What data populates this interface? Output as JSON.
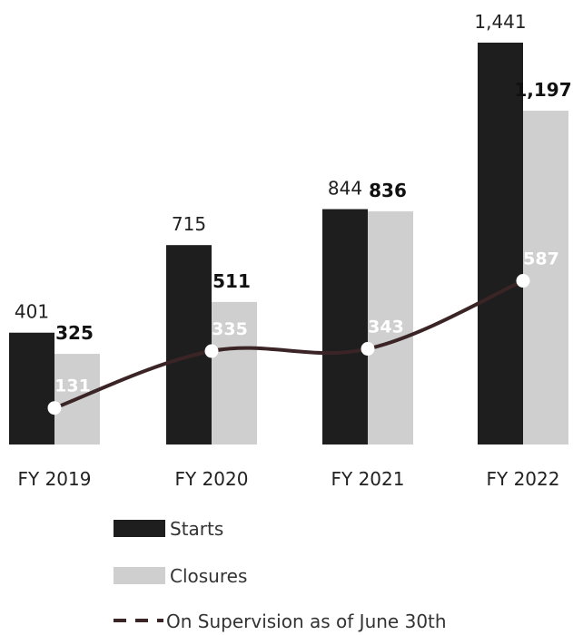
{
  "chart_data": {
    "type": "bar",
    "categories": [
      "FY 2019",
      "FY 2020",
      "FY 2021",
      "FY 2022"
    ],
    "series": [
      {
        "name": "Starts",
        "type": "bar",
        "values": [
          401,
          715,
          844,
          1441
        ],
        "labels": [
          "401",
          "715",
          "844",
          "1,441"
        ],
        "color": "#1e1e1e"
      },
      {
        "name": "Closures",
        "type": "bar",
        "values": [
          325,
          511,
          836,
          1197
        ],
        "labels": [
          "325",
          "511",
          "836",
          "1,197"
        ],
        "color": "#cfcfcf"
      },
      {
        "name": "On Supervision as of June 30th",
        "type": "line",
        "values": [
          131,
          335,
          343,
          587
        ],
        "labels": [
          "131",
          "335",
          "343",
          "587"
        ],
        "color": "#3a2426"
      }
    ],
    "ylim": [
      0,
      1441
    ],
    "grid": false,
    "legend_position": "bottom"
  }
}
